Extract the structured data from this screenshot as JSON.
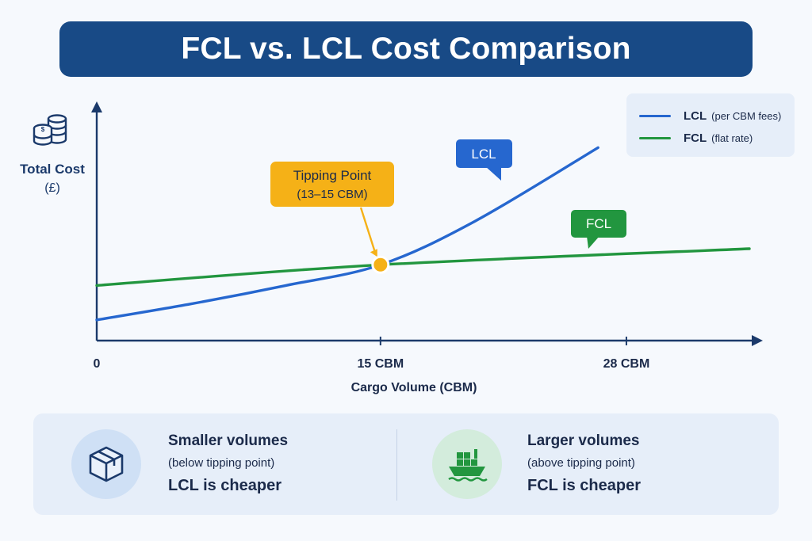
{
  "header": {
    "title": "FCL vs. LCL Cost Comparison"
  },
  "colors": {
    "lcl": "#2667cf",
    "fcl": "#22963f",
    "tipping": "#f5b117",
    "axis": "#1b3a6b"
  },
  "icons": {
    "y_axis": "coin-stack-icon",
    "left_panel": "box-icon",
    "right_panel": "cargo-ship-icon"
  },
  "chart_data": {
    "type": "line",
    "title": "FCL vs. LCL Cost Comparison",
    "xlabel": "Cargo Volume (CBM)",
    "ylabel": "Total Cost",
    "ylabel_unit": "(£)",
    "x_ticks": [
      "0",
      "15 CBM",
      "28 CBM"
    ],
    "x_tick_values": [
      0,
      15,
      28
    ],
    "xlim": [
      0,
      34.5
    ],
    "ylim": [
      0,
      100
    ],
    "grid": false,
    "legend_position": "top-right",
    "legend": [
      {
        "name": "LCL",
        "note": "(per CBM fees)"
      },
      {
        "name": "FCL",
        "note": "(flat rate)"
      }
    ],
    "series": [
      {
        "name": "LCL",
        "x": [
          0,
          5,
          10,
          15,
          20,
          26.5
        ],
        "y": [
          9,
          16,
          24,
          33,
          52,
          84
        ]
      },
      {
        "name": "FCL",
        "x": [
          0,
          15,
          34.5
        ],
        "y": [
          24,
          33,
          40
        ]
      }
    ],
    "annotations": {
      "tipping_point": {
        "title": "Tipping Point",
        "range": "(13–15 CBM)",
        "x": 15,
        "y": 33
      },
      "lcl_label": "LCL",
      "fcl_label": "FCL"
    }
  },
  "bottom": {
    "left": {
      "heading": "Smaller volumes",
      "sub": "(below tipping point)",
      "result": "LCL is cheaper"
    },
    "right": {
      "heading": "Larger volumes",
      "sub": "(above tipping point)",
      "result": "FCL is cheaper"
    }
  }
}
